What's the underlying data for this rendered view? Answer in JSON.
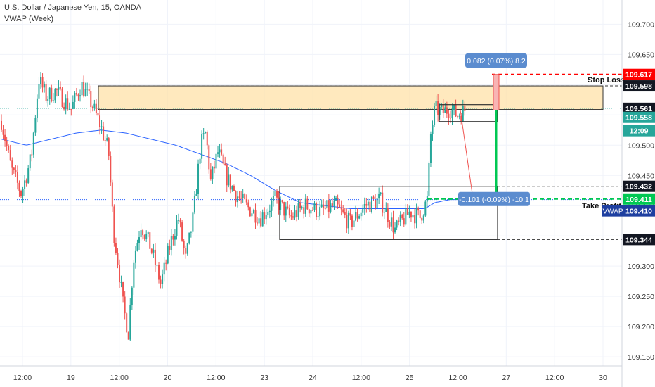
{
  "header": {
    "title": "U.S. Dollar / Japanese Yen, 15, OANDA",
    "indicator": "VWAP (Week)"
  },
  "colors": {
    "up": "#26a69a",
    "down": "#ef5350",
    "vwap": "#2962ff",
    "stop": "#ff0000",
    "target": "#00c853",
    "zone": "#ffe0a3",
    "tooltip": "#5b8ccf"
  },
  "chart_data": {
    "type": "candlestick",
    "symbol": "USDJPY",
    "interval": "15",
    "broker": "OANDA",
    "ylim": [
      109.135,
      109.74
    ],
    "y_ticks": [
      "109.700",
      "109.650",
      "109.600",
      "109.550",
      "109.500",
      "109.450",
      "109.400",
      "109.350",
      "109.300",
      "109.250",
      "109.200",
      "109.150"
    ],
    "x_ticks": [
      "12:00",
      "19",
      "12:00",
      "20",
      "12:00",
      "23",
      "24",
      "12:00",
      "25",
      "12:00",
      "27",
      "12:00",
      "30"
    ],
    "price_path": [
      [
        0,
        109.54
      ],
      [
        0.02,
        109.46
      ],
      [
        0.04,
        109.42
      ],
      [
        0.06,
        109.48
      ],
      [
        0.075,
        109.61
      ],
      [
        0.09,
        109.58
      ],
      [
        0.11,
        109.59
      ],
      [
        0.14,
        109.56
      ],
      [
        0.16,
        109.6
      ],
      [
        0.18,
        109.57
      ],
      [
        0.2,
        109.53
      ],
      [
        0.215,
        109.49
      ],
      [
        0.225,
        109.36
      ],
      [
        0.235,
        109.3
      ],
      [
        0.245,
        109.23
      ],
      [
        0.255,
        109.19
      ],
      [
        0.265,
        109.31
      ],
      [
        0.28,
        109.37
      ],
      [
        0.3,
        109.33
      ],
      [
        0.32,
        109.27
      ],
      [
        0.34,
        109.34
      ],
      [
        0.355,
        109.38
      ],
      [
        0.37,
        109.31
      ],
      [
        0.385,
        109.38
      ],
      [
        0.4,
        109.5
      ],
      [
        0.41,
        109.52
      ],
      [
        0.42,
        109.44
      ],
      [
        0.435,
        109.49
      ],
      [
        0.45,
        109.45
      ],
      [
        0.47,
        109.42
      ],
      [
        0.49,
        109.4
      ],
      [
        0.52,
        109.38
      ],
      [
        0.55,
        109.41
      ],
      [
        0.58,
        109.38
      ],
      [
        0.61,
        109.4
      ],
      [
        0.64,
        109.39
      ],
      [
        0.67,
        109.4
      ],
      [
        0.7,
        109.37
      ],
      [
        0.73,
        109.4
      ],
      [
        0.76,
        109.41
      ],
      [
        0.79,
        109.36
      ],
      [
        0.82,
        109.39
      ],
      [
        0.84,
        109.38
      ],
      [
        0.855,
        109.41
      ],
      [
        0.862,
        109.52
      ],
      [
        0.87,
        109.56
      ],
      [
        0.885,
        109.555
      ],
      [
        0.9,
        109.56
      ],
      [
        0.915,
        109.55
      ],
      [
        0.93,
        109.558
      ]
    ],
    "vwap_path": [
      [
        0,
        109.51
      ],
      [
        0.05,
        109.5
      ],
      [
        0.1,
        109.51
      ],
      [
        0.15,
        109.52
      ],
      [
        0.2,
        109.525
      ],
      [
        0.25,
        109.52
      ],
      [
        0.3,
        109.51
      ],
      [
        0.35,
        109.5
      ],
      [
        0.4,
        109.485
      ],
      [
        0.45,
        109.47
      ],
      [
        0.5,
        109.45
      ],
      [
        0.55,
        109.425
      ],
      [
        0.6,
        109.405
      ],
      [
        0.65,
        109.4
      ],
      [
        0.7,
        109.395
      ],
      [
        0.75,
        109.395
      ],
      [
        0.8,
        109.395
      ],
      [
        0.85,
        109.395
      ],
      [
        0.87,
        109.405
      ],
      [
        0.9,
        109.41
      ],
      [
        0.93,
        109.41
      ]
    ],
    "price_labels": {
      "stop": "109.617",
      "zone_top": "109.598",
      "last_price": "109.561",
      "current": "109.558",
      "countdown": "12:09",
      "range_top": "109.432",
      "take_profit": "109.411",
      "vwap_label": "VWAP",
      "vwap_value": "109.410",
      "range_bottom": "109.344"
    },
    "annotations": {
      "stop_loss": "Stop Loss",
      "take_profit": "Take Profit",
      "up_measure": "0.082 (0.07%) 8.2",
      "down_measure": "-0.101 (-0.09%) -10.1"
    },
    "levels": {
      "stop": 109.617,
      "zone_top": 109.598,
      "zone_bottom": 109.559,
      "last_price": 109.561,
      "current": 109.558,
      "range_top": 109.432,
      "take_profit": 109.411,
      "vwap": 109.41,
      "range_bottom": 109.344
    }
  }
}
